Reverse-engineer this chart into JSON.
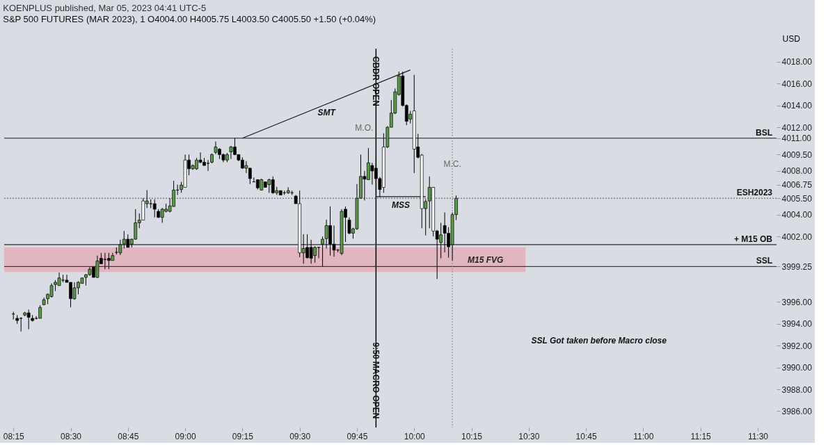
{
  "chart_data": {
    "type": "candlestick",
    "title": "KOENPLUS published, Mar 05, 2023 04:41 UTC-5",
    "subtitle": "S&P 500 FUTURES (MAR 2023), 1  O4004.00  H4005.75  L4003.50  C4005.50  +1.50 (+0.04%)",
    "ylabel": "USD",
    "x": [
      8.25,
      8.2667,
      8.2833,
      8.3,
      8.3167,
      8.3333,
      8.35,
      8.3667,
      8.3833,
      8.4,
      8.4167,
      8.4333,
      8.45,
      8.4667,
      8.4833,
      8.5,
      8.5167,
      8.5333,
      8.55,
      8.5667,
      8.5833,
      8.6,
      8.6167,
      8.6333,
      8.65,
      8.6667,
      8.6833,
      8.7,
      8.7167,
      8.7333,
      8.75,
      8.7667,
      8.7833,
      8.8,
      8.8167,
      8.8333,
      8.85,
      8.8667,
      8.8833,
      8.9,
      8.9167,
      8.9333,
      8.95,
      8.9667,
      8.9833,
      9.0,
      9.0167,
      9.0333,
      9.05,
      9.0667,
      9.0833,
      9.1,
      9.1167,
      9.1333,
      9.15,
      9.1667,
      9.1833,
      9.2,
      9.2167,
      9.2333,
      9.25,
      9.2667,
      9.2833,
      9.3,
      9.3167,
      9.3333,
      9.35,
      9.3667,
      9.3833,
      9.4,
      9.4167,
      9.4333,
      9.45,
      9.4667,
      9.4833,
      9.5,
      9.5167,
      9.5333,
      9.55,
      9.5667,
      9.5833,
      9.6,
      9.6167,
      9.6333,
      9.65,
      9.6667,
      9.6833,
      9.7,
      9.7167,
      9.7333,
      9.75,
      9.7667,
      9.7833,
      9.8,
      9.8167,
      9.8333,
      9.85,
      9.8667,
      9.8833,
      9.9,
      9.9167,
      9.9333,
      9.95,
      9.9667,
      9.9833,
      10.0,
      10.0167,
      10.0333,
      10.05,
      10.0667,
      10.0833,
      10.1,
      10.1167,
      10.1333,
      10.15,
      10.1667,
      10.1833
    ],
    "ohlc": [
      [
        3994.9,
        3995.1,
        3994.4,
        3994.9
      ],
      [
        3994.5,
        3994.8,
        3994.0,
        3994.3
      ],
      [
        3994.5,
        3994.6,
        3993.3,
        3994.5
      ],
      [
        3994.8,
        3995.1,
        3994.7,
        3995.0
      ],
      [
        3995.0,
        3995.3,
        3993.5,
        3994.6
      ],
      [
        3994.5,
        3994.8,
        3994.2,
        3994.3
      ],
      [
        3994.5,
        3994.7,
        3994.4,
        3994.5
      ],
      [
        3994.5,
        3995.7,
        3994.5,
        3995.5
      ],
      [
        3995.75,
        3996.4,
        3995.7,
        3996.2
      ],
      [
        3996.3,
        3996.8,
        3995.8,
        3996.7
      ],
      [
        3996.5,
        3997.7,
        3996.4,
        3997.5
      ],
      [
        3997.6,
        3998.0,
        3997.0,
        3997.8
      ],
      [
        3997.5,
        3998.7,
        3997.5,
        3998.2
      ],
      [
        3998.0,
        3998.5,
        3997.8,
        3998.0
      ],
      [
        3998.0,
        3998.5,
        3997.8,
        3997.8
      ],
      [
        3997.8,
        3997.8,
        3995.5,
        3996.3
      ],
      [
        3996.3,
        3997.8,
        3996.2,
        3997.3
      ],
      [
        3997.3,
        3997.9,
        3996.7,
        3997.8
      ],
      [
        3997.7,
        3998.2,
        3997.7,
        3998.2
      ],
      [
        3998.25,
        3998.55,
        3997.5,
        3998.5
      ],
      [
        3998.5,
        3999.2,
        3998.4,
        3999.0
      ],
      [
        3999.2,
        3999.2,
        3998.25,
        3998.25
      ],
      [
        3998.25,
        4000.25,
        3998.2,
        3999.75
      ],
      [
        4000.0,
        4000.5,
        3999.5,
        3999.5
      ],
      [
        3999.9,
        4000.5,
        3999.0,
        3999.9
      ],
      [
        4000.0,
        4000.5,
        3999.0,
        3999.8
      ],
      [
        3999.8,
        4000.5,
        3999.8,
        4000.25
      ],
      [
        4000.55,
        4001.0,
        4000.35,
        4000.55
      ],
      [
        4000.5,
        4001.7,
        4000.3,
        4001.25
      ],
      [
        4001.3,
        4002.5,
        4000.9,
        4001.75
      ],
      [
        4001.75,
        4002.2,
        4001.0,
        4001.0
      ],
      [
        4001.3,
        4001.8,
        4001.0,
        4001.75
      ],
      [
        4001.75,
        4004.5,
        4001.7,
        4003.25
      ],
      [
        4003.25,
        4004.1,
        4002.75,
        4003.5
      ],
      [
        4003.5,
        4005.5,
        4003.5,
        4005.25
      ],
      [
        4005.0,
        4006.25,
        4004.6,
        4005.25
      ],
      [
        4005.0,
        4005.4,
        4004.6,
        4005.0
      ],
      [
        4005.0,
        4005.4,
        4003.75,
        4004.5
      ],
      [
        4004.3,
        4004.5,
        4003.7,
        4003.75
      ],
      [
        4003.75,
        4004.6,
        4003.25,
        4004.5
      ],
      [
        4004.3,
        4005.0,
        4004.2,
        4004.5
      ],
      [
        4004.3,
        4005.5,
        4004.2,
        4004.8
      ],
      [
        4004.75,
        4007.1,
        4004.7,
        4006.25
      ],
      [
        4006.25,
        4006.75,
        4005.8,
        4006.25
      ],
      [
        4006.3,
        4007.0,
        4006.0,
        4006.7
      ],
      [
        4006.5,
        4009.5,
        4006.5,
        4009.0
      ],
      [
        4009.0,
        4009.5,
        4007.6,
        4008.2
      ],
      [
        4008.2,
        4008.6,
        4008.1,
        4008.5
      ],
      [
        4008.2,
        4009.2,
        4008.1,
        4009.0
      ],
      [
        4009.0,
        4009.7,
        4008.7,
        4008.8
      ],
      [
        4008.8,
        4009.2,
        4008.5,
        4008.5
      ],
      [
        4008.7,
        4009.0,
        4008.0,
        4008.7
      ],
      [
        4008.8,
        4009.6,
        4008.7,
        4009.5
      ],
      [
        4009.7,
        4010.7,
        4009.55,
        4010.2
      ],
      [
        4010.0,
        4010.1,
        4009.1,
        4009.5
      ],
      [
        4009.5,
        4009.6,
        4008.8,
        4009.0
      ],
      [
        4009.0,
        4009.65,
        4008.8,
        4009.5
      ],
      [
        4009.75,
        4010.3,
        4009.1,
        4010.2
      ],
      [
        4010.2,
        4011.0,
        4009.45,
        4009.5
      ],
      [
        4009.5,
        4009.5,
        4008.9,
        4009.0
      ],
      [
        4009.0,
        4009.25,
        4008.2,
        4008.25
      ],
      [
        4008.25,
        4008.9,
        4007.8,
        4008.5
      ],
      [
        4008.25,
        4008.3,
        4006.8,
        4007.3
      ],
      [
        4007.0,
        4007.4,
        4007.0,
        4007.0
      ],
      [
        4007.2,
        4007.2,
        4006.3,
        4006.45
      ],
      [
        4006.25,
        4007.3,
        4006.2,
        4007.2
      ],
      [
        4007.0,
        4007.0,
        4006.5,
        4006.5
      ],
      [
        4006.75,
        4007.3,
        4006.0,
        4007.2
      ],
      [
        4007.2,
        4007.5,
        4005.9,
        4006.0
      ],
      [
        4006.0,
        4006.55,
        4005.8,
        4006.2
      ],
      [
        4006.2,
        4006.2,
        4005.8,
        4005.8
      ],
      [
        4006.0,
        4006.2,
        4005.8,
        4006.0
      ],
      [
        4006.0,
        4006.5,
        4005.9,
        4006.2
      ],
      [
        4006.0,
        4006.2,
        4005.8,
        4006.0
      ],
      [
        4005.7,
        4005.8,
        4005.0,
        4005.0
      ],
      [
        4005.0,
        4006.2,
        4000.1,
        4000.5
      ],
      [
        4000.5,
        4002.2,
        3999.5,
        4000.9
      ],
      [
        4001.0,
        4002.2,
        4000.0,
        4000.05
      ],
      [
        4001.0,
        4001.7,
        3999.5,
        4000.0
      ],
      [
        4000.25,
        4001.1,
        3999.6,
        4001.0
      ],
      [
        4001.0,
        4001.05,
        4000.0,
        4001.0
      ],
      [
        4001.3,
        4002.0,
        3999.25,
        4001.75
      ],
      [
        4001.8,
        4003.55,
        4000.9,
        4003.0
      ],
      [
        4003.0,
        4004.75,
        4000.25,
        4001.3
      ],
      [
        4001.3,
        4003.0,
        4000.15,
        4000.75
      ],
      [
        4000.75,
        4000.85,
        4000.55,
        4000.75
      ],
      [
        4000.45,
        4004.5,
        4000.3,
        4004.3
      ],
      [
        4004.5,
        4004.75,
        4001.5,
        4003.75
      ],
      [
        4003.5,
        4003.75,
        4002.2,
        4002.3
      ],
      [
        4002.3,
        4002.8,
        4001.8,
        4002.7
      ],
      [
        4002.7,
        4006.8,
        4002.6,
        4005.5
      ],
      [
        4005.5,
        4009.5,
        4005.45,
        4007.5
      ],
      [
        4007.5,
        4008.0,
        4005.3,
        4007.25
      ],
      [
        4007.2,
        4010.1,
        4007.2,
        4008.75
      ],
      [
        4008.5,
        4008.75,
        4006.75,
        4008.0
      ],
      [
        4008.25,
        4009.25,
        4007.1,
        4007.3
      ],
      [
        4007.3,
        4007.45,
        4005.6,
        4006.3
      ],
      [
        4006.5,
        4011.45,
        4006.0,
        4010.2
      ],
      [
        4010.2,
        4012.1,
        4010.1,
        4012.0
      ],
      [
        4012.0,
        4014.5,
        4012.0,
        4013.3
      ],
      [
        4013.3,
        4015.55,
        4013.2,
        4015.25
      ],
      [
        4015.0,
        4017.1,
        4014.9,
        4016.7
      ],
      [
        4016.7,
        4017.1,
        4013.9,
        4014.0
      ],
      [
        4014.0,
        4014.1,
        4012.2,
        4012.55
      ],
      [
        4012.75,
        4013.5,
        4012.35,
        4013.2
      ],
      [
        4013.5,
        4016.8,
        4007.8,
        4010.0
      ],
      [
        4010.2,
        4011.4,
        4009.15,
        4009.25
      ],
      [
        4009.45,
        4009.55,
        4002.75,
        4004.55
      ],
      [
        4004.55,
        4005.4,
        4002.1,
        4005.2
      ],
      [
        4005.25,
        4007.5,
        4002.75,
        4006.5
      ],
      [
        4006.5,
        4006.5,
        4002.0,
        4002.5
      ],
      [
        4002.5,
        4002.6,
        3998.1,
        4001.75
      ],
      [
        4001.45,
        4003.25,
        4000.0,
        4002.15
      ],
      [
        4003.0,
        4004.2,
        4000.55,
        4002.3
      ],
      [
        4002.3,
        4002.85,
        4000.05,
        4001.05
      ],
      [
        4001.25,
        4004.2,
        3999.8,
        4004.0
      ],
      [
        4004.0,
        4005.75,
        4003.5,
        4005.5
      ]
    ],
    "colors": [
      "#000000",
      "#000000",
      "#000000",
      "#5b9a4a",
      "#000000",
      "#000000",
      "#000000",
      "#5b9a4a",
      "#5b9a4a",
      "#5b9a4a",
      "#5b9a4a",
      "#5b9a4a",
      "#5b9a4a",
      "#000000",
      "#000000",
      "#000000",
      "#5b9a4a",
      "#5b9a4a",
      "#5b9a4a",
      "#5b9a4a",
      "#5b9a4a",
      "#000000",
      "#5b9a4a",
      "#000000",
      "#000000",
      "#000000",
      "#5b9a4a",
      "#000000",
      "#5b9a4a",
      "#5b9a4a",
      "#000000",
      "#5b9a4a",
      "#5b9a4a",
      "#5b9a4a",
      "#ffffff",
      "#5b9a4a",
      "#000000",
      "#000000",
      "#000000",
      "#5b9a4a",
      "#5b9a4a",
      "#5b9a4a",
      "#5b9a4a",
      "#000000",
      "#5b9a4a",
      "#ffffff",
      "#000000",
      "#5b9a4a",
      "#5b9a4a",
      "#000000",
      "#000000",
      "#000000",
      "#5b9a4a",
      "#5b9a4a",
      "#000000",
      "#000000",
      "#5b9a4a",
      "#5b9a4a",
      "#000000",
      "#000000",
      "#000000",
      "#5b9a4a",
      "#000000",
      "#000000",
      "#000000",
      "#5b9a4a",
      "#000000",
      "#5b9a4a",
      "#000000",
      "#5b9a4a",
      "#000000",
      "#000000",
      "#5b9a4a",
      "#000000",
      "#000000",
      "#ffffff",
      "#5b9a4a",
      "#000000",
      "#000000",
      "#5b9a4a",
      "#000000",
      "#5b9a4a",
      "#5b9a4a",
      "#000000",
      "#000000",
      "#000000",
      "#5b9a4a",
      "#000000",
      "#000000",
      "#5b9a4a",
      "#5b9a4a",
      "#5b9a4a",
      "#000000",
      "#5b9a4a",
      "#000000",
      "#000000",
      "#000000",
      "#ffffff",
      "#5b9a4a",
      "#5b9a4a",
      "#5b9a4a",
      "#5b9a4a",
      "#000000",
      "#000000",
      "#5b9a4a",
      "#ffffff",
      "#000000",
      "#ffffff",
      "#5b9a4a",
      "#5b9a4a",
      "#ffffff",
      "#000000",
      "#5b9a4a",
      "#000000",
      "#000000",
      "#5b9a4a",
      "#5b9a4a"
    ],
    "series": [
      {
        "name": "SMT",
        "type": "line",
        "color": "#1a1a1a",
        "x": [
          9.25,
          9.9833
        ],
        "values": [
          4011.0,
          4017.25
        ]
      },
      {
        "name": "MSS",
        "type": "line",
        "color": "#1a1a1a",
        "x": [
          9.8333,
          10.05
        ],
        "values": [
          4005.65,
          4005.65
        ]
      }
    ],
    "xlim": [
      8.225,
      11.567
    ],
    "ylim": [
      3984.5,
      4019.2
    ],
    "xticks": [
      {
        "value": 8.25,
        "label": "08:15"
      },
      {
        "value": 8.5,
        "label": "08:30"
      },
      {
        "value": 8.75,
        "label": "08:45"
      },
      {
        "value": 9,
        "label": "09:00"
      },
      {
        "value": 9.25,
        "label": "09:15"
      },
      {
        "value": 9.5,
        "label": "09:30"
      },
      {
        "value": 9.75,
        "label": "09:45"
      },
      {
        "value": 10,
        "label": "10:00"
      },
      {
        "value": 10.25,
        "label": "10:15"
      },
      {
        "value": 10.5,
        "label": "10:30"
      },
      {
        "value": 10.75,
        "label": "10:45"
      },
      {
        "value": 11,
        "label": "11:00"
      },
      {
        "value": 11.25,
        "label": "11:15"
      },
      {
        "value": 11.5,
        "label": "11:30"
      }
    ],
    "yticks": [
      {
        "value": 4018,
        "label": "4018.00"
      },
      {
        "value": 4016,
        "label": "4016.00"
      },
      {
        "value": 4014,
        "label": "4014.00"
      },
      {
        "value": 4012,
        "label": "4012.00"
      },
      {
        "value": 4011,
        "label": "4011.00"
      },
      {
        "value": 4009.5,
        "label": "4009.50"
      },
      {
        "value": 4008,
        "label": "4008.00"
      },
      {
        "value": 4006.75,
        "label": "4006.75"
      },
      {
        "value": 4005.5,
        "label": "4005.50"
      },
      {
        "value": 4004,
        "label": "4004.00"
      },
      {
        "value": 4002,
        "label": "4002.00"
      },
      {
        "value": 3999.25,
        "label": "3999.25"
      },
      {
        "value": 3996,
        "label": "3996.00"
      },
      {
        "value": 3994,
        "label": "3994.00"
      },
      {
        "value": 3992,
        "label": "3992.00"
      },
      {
        "value": 3990,
        "label": "3990.00"
      },
      {
        "value": 3988,
        "label": "3988.00"
      },
      {
        "value": 3986,
        "label": "3986.00"
      }
    ],
    "ref_lines": [
      {
        "axis": "y",
        "value": 4011,
        "label": "BSL",
        "color": "#1a1a1a",
        "line_style": "solid"
      },
      {
        "axis": "y",
        "value": 3999.25,
        "label": "SSL",
        "color": "#1a1a1a",
        "line_style": "solid"
      },
      {
        "axis": "y",
        "value": 4001.25,
        "label": "+ M15 OB",
        "color": "#000000",
        "line_style": "solid"
      },
      {
        "axis": "y",
        "value": 4005.5,
        "label": "ESH2023",
        "color": "#555555",
        "line_style": "dotted"
      },
      {
        "axis": "x",
        "value": 9.8333,
        "color": "#000000",
        "line_style": "solid"
      },
      {
        "axis": "x",
        "value": 10.1667,
        "color": "#888888",
        "line_style": "dotted"
      }
    ],
    "bands": [
      {
        "axis": "y",
        "from": 3998.75,
        "to": 4001.0,
        "label": "M15 FVG",
        "color": "#e3aab6"
      }
    ],
    "annotations": [
      {
        "text": "CBDR OPEN",
        "x": 9.8333,
        "y": 4018.5
      },
      {
        "text": "9:50 MACRO OPEN",
        "x": 9.8333,
        "y": 3992.3
      },
      "M.O.",
      "M.C.",
      "SSL Got taken before Macro close"
    ]
  }
}
